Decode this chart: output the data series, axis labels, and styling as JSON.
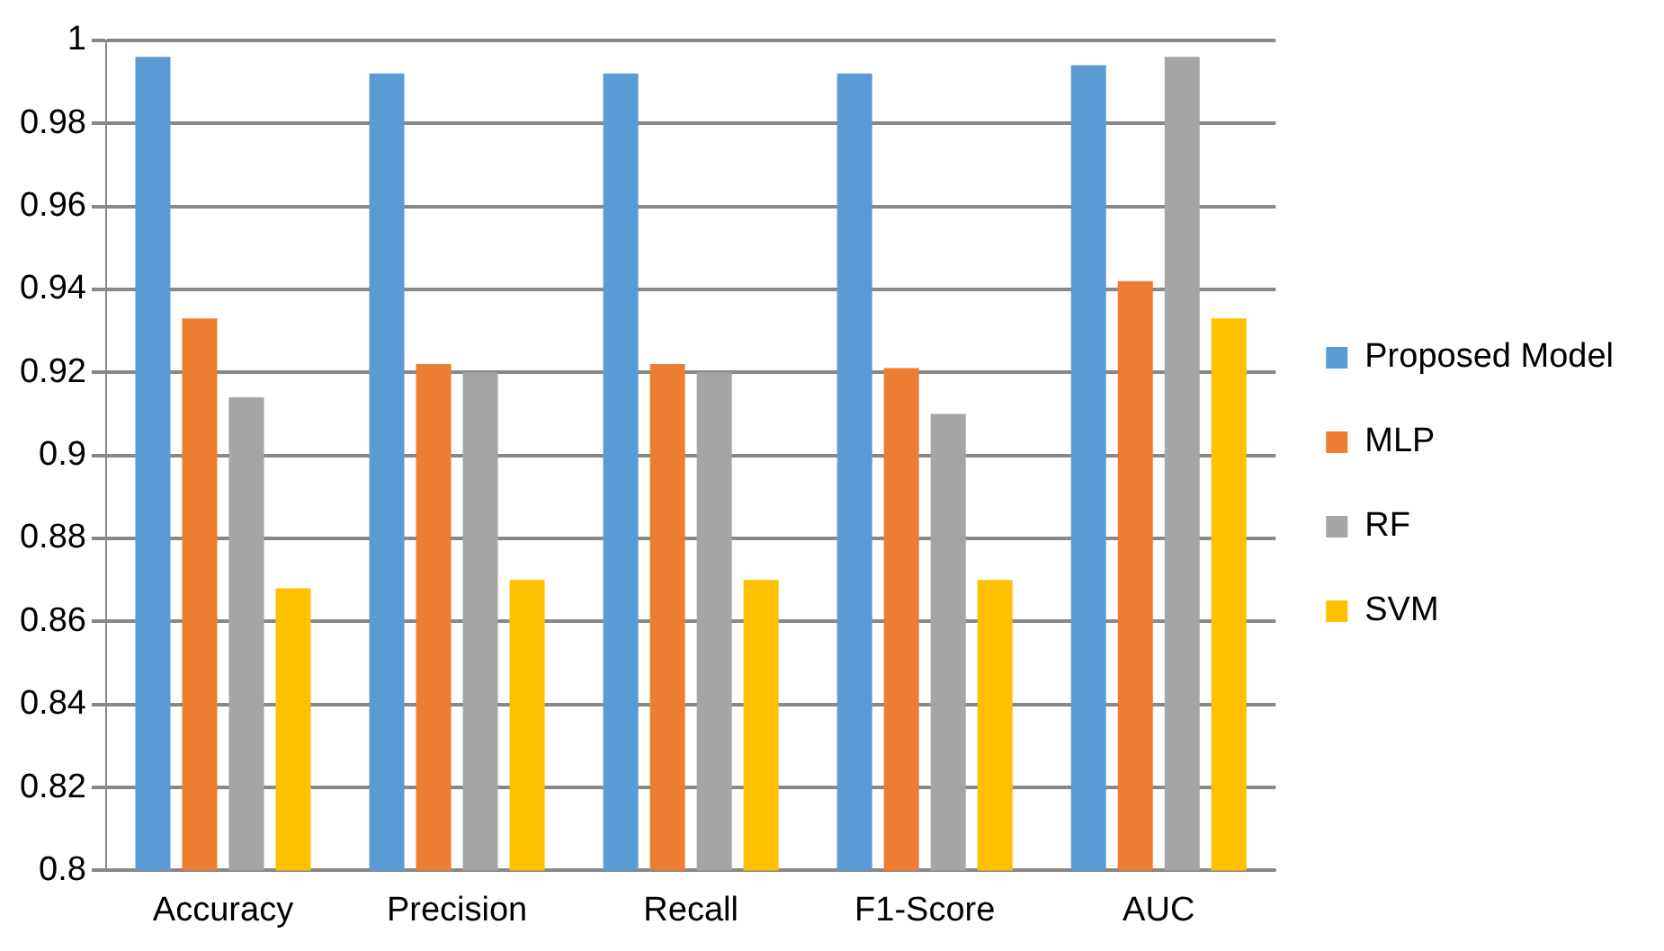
{
  "chart_data": {
    "type": "bar",
    "categories": [
      "Accuracy",
      "Precision",
      "Recall",
      "F1-Score",
      "AUC"
    ],
    "series": [
      {
        "name": "Proposed Model",
        "color": "#5b9bd5",
        "values": [
          0.996,
          0.992,
          0.992,
          0.992,
          0.994
        ]
      },
      {
        "name": "MLP",
        "color": "#ed7d31",
        "values": [
          0.933,
          0.922,
          0.922,
          0.921,
          0.942
        ]
      },
      {
        "name": "RF",
        "color": "#a5a5a5",
        "values": [
          0.914,
          0.92,
          0.92,
          0.91,
          0.996
        ]
      },
      {
        "name": "SVM",
        "color": "#ffc000",
        "values": [
          0.868,
          0.87,
          0.87,
          0.87,
          0.933
        ]
      }
    ],
    "ylim": [
      0.8,
      1
    ],
    "yticks": [
      0.8,
      0.82,
      0.84,
      0.86,
      0.88,
      0.9,
      0.92,
      0.94,
      0.96,
      0.98,
      1
    ],
    "grid": "y",
    "legend": "right"
  }
}
